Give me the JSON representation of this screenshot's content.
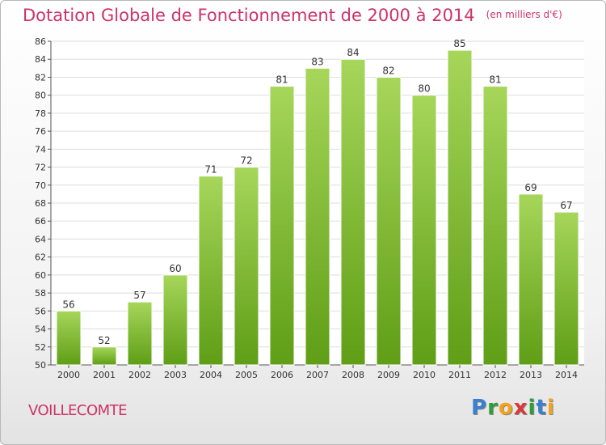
{
  "title": "Dotation Globale de Fonctionnement de 2000 à 2014",
  "unit_note": "(en milliers d'€)",
  "commune": "VOILLECOMTE",
  "logo_letters": [
    {
      "char": "P",
      "color": "#3a7fd0"
    },
    {
      "char": "r",
      "color": "#2f9e3a"
    },
    {
      "char": "o",
      "color": "#f2a21b"
    },
    {
      "char": "x",
      "color": "#d83a3a"
    },
    {
      "char": "i",
      "color": "#2f9e3a"
    },
    {
      "char": "t",
      "color": "#3a7fd0"
    },
    {
      "char": "i",
      "color": "#f2a21b"
    }
  ],
  "colors": {
    "title": "#cc3366",
    "bar_top": "#a6d65a",
    "bar_bottom": "#5f9e16",
    "grid": "#dddddd"
  },
  "chart_data": {
    "type": "bar",
    "categories": [
      "2000",
      "2001",
      "2002",
      "2003",
      "2004",
      "2005",
      "2006",
      "2007",
      "2008",
      "2009",
      "2010",
      "2011",
      "2012",
      "2013",
      "2014"
    ],
    "values": [
      56,
      52,
      57,
      60,
      71,
      72,
      81,
      83,
      84,
      82,
      80,
      85,
      81,
      69,
      67
    ],
    "ylim": [
      50,
      86
    ],
    "ytick_step": 2,
    "grid": true,
    "data_labels": true
  }
}
